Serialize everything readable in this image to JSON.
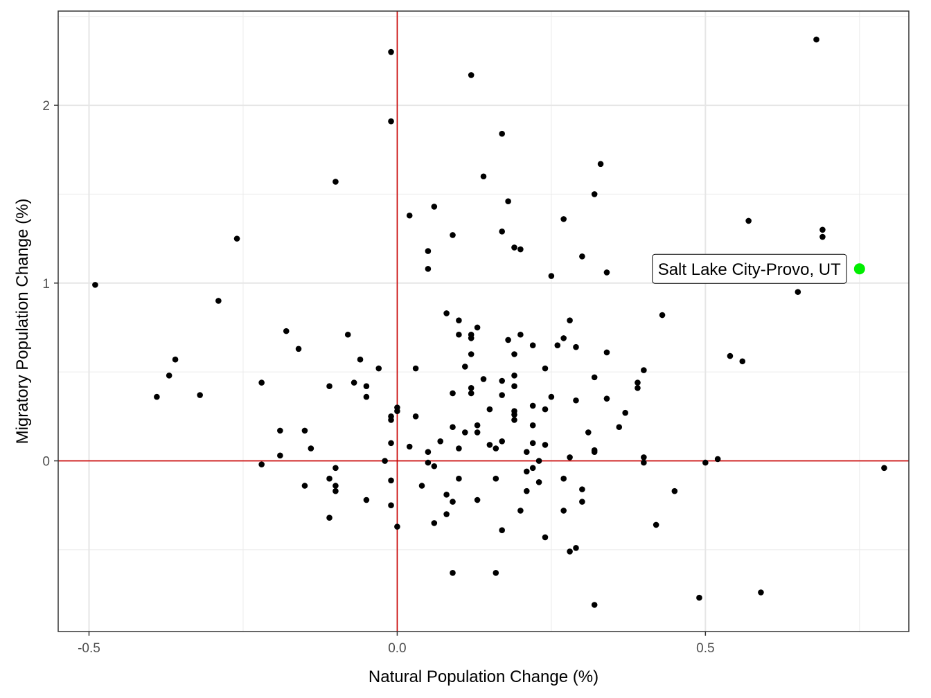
{
  "chart_data": {
    "type": "scatter",
    "title": "",
    "xlabel": "Natural Population Change (%)",
    "ylabel": "Migratory Population Change (%)",
    "xlim": [
      -0.55,
      0.83
    ],
    "ylim": [
      -0.96,
      2.53
    ],
    "x_ticks": [
      -0.5,
      0.0,
      0.5
    ],
    "x_tick_labels": [
      "-0.5",
      "0.0",
      "0.5"
    ],
    "y_ticks": [
      0,
      1,
      2
    ],
    "y_tick_labels": [
      "0",
      "1",
      "2"
    ],
    "grid": true,
    "reference_lines": {
      "x": 0,
      "y": 0,
      "color": "#cc0000"
    },
    "point_color": "#000000",
    "highlight": {
      "label": "Salt Lake City-Provo, UT",
      "x": 0.75,
      "y": 1.08,
      "color": "#00ee00"
    },
    "points": [
      [
        -0.49,
        0.99
      ],
      [
        -0.39,
        0.36
      ],
      [
        -0.37,
        0.48
      ],
      [
        -0.36,
        0.57
      ],
      [
        -0.32,
        0.37
      ],
      [
        -0.29,
        0.9
      ],
      [
        -0.26,
        1.25
      ],
      [
        -0.22,
        0.44
      ],
      [
        -0.22,
        -0.02
      ],
      [
        -0.19,
        0.17
      ],
      [
        -0.19,
        0.03
      ],
      [
        -0.18,
        0.73
      ],
      [
        -0.16,
        0.63
      ],
      [
        -0.15,
        0.17
      ],
      [
        -0.15,
        -0.14
      ],
      [
        -0.14,
        0.07
      ],
      [
        -0.11,
        0.42
      ],
      [
        -0.11,
        -0.1
      ],
      [
        -0.11,
        -0.32
      ],
      [
        -0.1,
        -0.04
      ],
      [
        -0.1,
        -0.14
      ],
      [
        -0.1,
        -0.17
      ],
      [
        -0.1,
        1.57
      ],
      [
        -0.08,
        0.71
      ],
      [
        -0.07,
        0.44
      ],
      [
        -0.06,
        0.57
      ],
      [
        -0.05,
        0.42
      ],
      [
        -0.05,
        0.36
      ],
      [
        -0.05,
        -0.22
      ],
      [
        -0.03,
        0.52
      ],
      [
        -0.02,
        0.0
      ],
      [
        -0.01,
        2.3
      ],
      [
        -0.01,
        1.91
      ],
      [
        -0.01,
        0.25
      ],
      [
        -0.01,
        0.23
      ],
      [
        -0.01,
        0.1
      ],
      [
        -0.01,
        -0.11
      ],
      [
        -0.01,
        -0.25
      ],
      [
        0.0,
        0.3
      ],
      [
        0.0,
        0.28
      ],
      [
        0.0,
        -0.37
      ],
      [
        0.02,
        1.38
      ],
      [
        0.02,
        0.08
      ],
      [
        0.03,
        0.52
      ],
      [
        0.03,
        0.25
      ],
      [
        0.04,
        -0.14
      ],
      [
        0.05,
        1.18
      ],
      [
        0.05,
        1.08
      ],
      [
        0.05,
        0.05
      ],
      [
        0.05,
        -0.01
      ],
      [
        0.06,
        1.43
      ],
      [
        0.06,
        -0.03
      ],
      [
        0.06,
        -0.35
      ],
      [
        0.07,
        0.11
      ],
      [
        0.08,
        0.83
      ],
      [
        0.08,
        -0.19
      ],
      [
        0.08,
        -0.3
      ],
      [
        0.09,
        1.27
      ],
      [
        0.09,
        0.38
      ],
      [
        0.09,
        0.19
      ],
      [
        0.09,
        -0.23
      ],
      [
        0.09,
        -0.63
      ],
      [
        0.1,
        0.79
      ],
      [
        0.1,
        0.71
      ],
      [
        0.1,
        0.07
      ],
      [
        0.1,
        -0.1
      ],
      [
        0.11,
        0.53
      ],
      [
        0.11,
        0.16
      ],
      [
        0.12,
        2.17
      ],
      [
        0.12,
        0.71
      ],
      [
        0.12,
        0.69
      ],
      [
        0.12,
        0.6
      ],
      [
        0.12,
        0.41
      ],
      [
        0.12,
        0.38
      ],
      [
        0.13,
        0.75
      ],
      [
        0.13,
        0.2
      ],
      [
        0.13,
        0.16
      ],
      [
        0.13,
        -0.22
      ],
      [
        0.14,
        1.6
      ],
      [
        0.14,
        0.46
      ],
      [
        0.15,
        0.29
      ],
      [
        0.15,
        0.09
      ],
      [
        0.16,
        0.07
      ],
      [
        0.16,
        -0.1
      ],
      [
        0.16,
        -0.63
      ],
      [
        0.17,
        1.84
      ],
      [
        0.17,
        1.29
      ],
      [
        0.17,
        0.45
      ],
      [
        0.17,
        0.37
      ],
      [
        0.17,
        0.11
      ],
      [
        0.17,
        -0.39
      ],
      [
        0.18,
        1.46
      ],
      [
        0.18,
        0.68
      ],
      [
        0.19,
        1.2
      ],
      [
        0.19,
        0.6
      ],
      [
        0.19,
        0.48
      ],
      [
        0.19,
        0.42
      ],
      [
        0.19,
        0.28
      ],
      [
        0.19,
        0.26
      ],
      [
        0.19,
        0.23
      ],
      [
        0.2,
        1.19
      ],
      [
        0.2,
        0.71
      ],
      [
        0.2,
        -0.28
      ],
      [
        0.21,
        0.05
      ],
      [
        0.21,
        -0.06
      ],
      [
        0.21,
        -0.17
      ],
      [
        0.22,
        0.65
      ],
      [
        0.22,
        0.31
      ],
      [
        0.22,
        0.2
      ],
      [
        0.22,
        0.1
      ],
      [
        0.22,
        -0.04
      ],
      [
        0.23,
        0.0
      ],
      [
        0.23,
        -0.12
      ],
      [
        0.24,
        0.52
      ],
      [
        0.24,
        0.29
      ],
      [
        0.24,
        0.09
      ],
      [
        0.24,
        -0.43
      ],
      [
        0.25,
        1.04
      ],
      [
        0.25,
        0.36
      ],
      [
        0.26,
        0.65
      ],
      [
        0.27,
        1.36
      ],
      [
        0.27,
        0.69
      ],
      [
        0.27,
        -0.1
      ],
      [
        0.27,
        -0.28
      ],
      [
        0.28,
        0.79
      ],
      [
        0.28,
        0.02
      ],
      [
        0.28,
        -0.51
      ],
      [
        0.29,
        0.64
      ],
      [
        0.29,
        0.34
      ],
      [
        0.29,
        -0.49
      ],
      [
        0.3,
        1.15
      ],
      [
        0.3,
        -0.16
      ],
      [
        0.3,
        -0.23
      ],
      [
        0.31,
        0.16
      ],
      [
        0.32,
        1.5
      ],
      [
        0.32,
        0.47
      ],
      [
        0.32,
        0.06
      ],
      [
        0.32,
        0.05
      ],
      [
        0.32,
        -0.81
      ],
      [
        0.33,
        1.67
      ],
      [
        0.34,
        1.06
      ],
      [
        0.34,
        0.61
      ],
      [
        0.34,
        0.35
      ],
      [
        0.36,
        0.19
      ],
      [
        0.37,
        0.27
      ],
      [
        0.39,
        0.44
      ],
      [
        0.39,
        0.41
      ],
      [
        0.4,
        0.51
      ],
      [
        0.4,
        0.02
      ],
      [
        0.4,
        -0.01
      ],
      [
        0.42,
        -0.36
      ],
      [
        0.43,
        0.82
      ],
      [
        0.45,
        -0.17
      ],
      [
        0.49,
        -0.77
      ],
      [
        0.5,
        -0.01
      ],
      [
        0.52,
        0.01
      ],
      [
        0.54,
        0.59
      ],
      [
        0.56,
        0.56
      ],
      [
        0.57,
        1.35
      ],
      [
        0.59,
        -0.74
      ],
      [
        0.65,
        0.95
      ],
      [
        0.68,
        2.37
      ],
      [
        0.69,
        1.3
      ],
      [
        0.69,
        1.26
      ],
      [
        0.79,
        -0.04
      ]
    ]
  }
}
